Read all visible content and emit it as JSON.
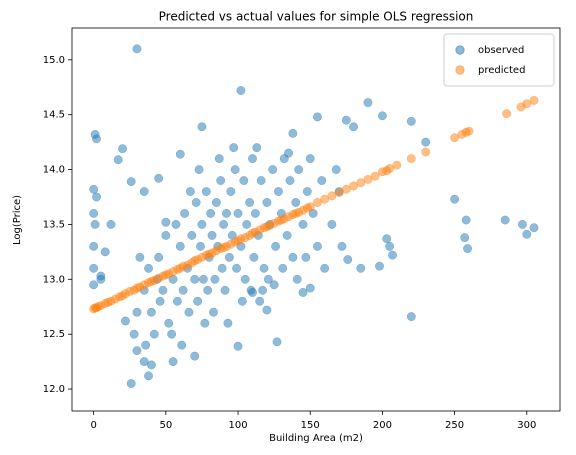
{
  "chart_data": {
    "type": "scatter",
    "title": "Predicted vs actual values for simple OLS regression",
    "xlabel": "Building Area (m2)",
    "ylabel": "Log(Price)",
    "xlim": [
      -15,
      323
    ],
    "ylim": [
      11.8,
      15.29
    ],
    "xticks": [
      0,
      50,
      100,
      150,
      200,
      250,
      300
    ],
    "yticks": [
      {
        "value": 12,
        "label": "12.0"
      },
      12.5,
      {
        "value": 13,
        "label": "13.0"
      },
      13.5,
      {
        "value": 14,
        "label": "14.0"
      },
      14.5,
      {
        "value": 15,
        "label": "15.0"
      }
    ],
    "legend": "upper right",
    "series": [
      {
        "name": "observed",
        "color": "#1f77b4",
        "x": [
          30,
          102,
          0,
          1,
          2,
          20,
          17,
          26,
          35,
          0,
          1,
          0,
          2,
          0,
          5,
          0,
          26,
          38,
          40,
          35,
          100,
          127,
          220,
          285,
          297,
          305,
          300,
          250,
          257,
          259,
          258,
          230,
          220,
          190,
          200,
          180,
          175,
          155,
          138,
          75,
          60,
          45,
          50,
          207,
          205,
          203,
          198,
          176,
          185,
          160,
          150,
          145,
          115,
          110,
          120,
          70,
          55,
          30,
          22,
          12,
          8,
          5,
          40,
          45,
          48,
          50,
          52,
          55,
          57,
          58,
          60,
          62,
          63,
          65,
          66,
          68,
          70,
          71,
          72,
          74,
          75,
          76,
          78,
          79,
          80,
          81,
          82,
          84,
          85,
          86,
          88,
          89,
          90,
          91,
          92,
          94,
          95,
          96,
          98,
          99,
          100,
          102,
          104,
          105,
          106,
          108,
          110,
          111,
          112,
          114,
          116,
          118,
          120,
          122,
          124,
          126,
          128,
          130,
          132,
          134,
          136,
          138,
          140,
          142,
          145,
          148,
          150,
          152,
          155,
          158,
          35,
          38,
          42,
          44,
          46,
          30,
          32,
          28,
          36,
          54,
          61,
          67,
          73,
          77,
          83,
          87,
          93,
          97,
          103,
          109,
          113,
          117,
          121,
          125,
          131,
          135,
          141,
          147,
          165,
          170,
          168,
          172
        ],
        "y": [
          15.1,
          14.72,
          13.82,
          14.32,
          14.28,
          14.19,
          14.09,
          13.89,
          13.8,
          13.6,
          13.5,
          13.3,
          13.75,
          13.1,
          13.0,
          12.95,
          12.05,
          12.12,
          12.22,
          12.25,
          12.39,
          12.43,
          12.66,
          13.54,
          13.5,
          13.47,
          13.41,
          13.73,
          13.38,
          13.28,
          13.54,
          14.25,
          14.44,
          14.61,
          14.49,
          14.39,
          14.45,
          14.48,
          14.33,
          14.39,
          14.14,
          13.92,
          13.52,
          13.22,
          13.3,
          13.37,
          13.12,
          13.18,
          13.1,
          13.1,
          12.92,
          12.88,
          12.8,
          12.88,
          12.72,
          12.3,
          12.25,
          12.35,
          12.62,
          13.5,
          13.25,
          13.03,
          12.7,
          13.2,
          12.9,
          13.4,
          12.6,
          13.0,
          13.5,
          12.8,
          13.3,
          12.9,
          13.6,
          13.1,
          12.7,
          13.4,
          13.0,
          13.7,
          12.8,
          13.3,
          13.5,
          13.0,
          13.8,
          12.9,
          13.2,
          13.6,
          13.4,
          13.0,
          13.7,
          13.3,
          13.9,
          13.1,
          13.5,
          12.9,
          13.6,
          13.2,
          13.8,
          13.4,
          14.0,
          13.1,
          13.6,
          13.3,
          13.9,
          13.0,
          13.5,
          13.7,
          14.1,
          13.2,
          13.6,
          13.4,
          13.9,
          13.1,
          13.7,
          13.5,
          14.0,
          13.3,
          13.8,
          13.6,
          14.1,
          13.4,
          13.9,
          13.2,
          13.7,
          14.0,
          13.5,
          13.8,
          14.1,
          13.6,
          13.3,
          13.9,
          12.9,
          13.1,
          12.5,
          13.0,
          12.8,
          12.7,
          13.2,
          12.5,
          12.4,
          12.5,
          12.4,
          13.8,
          14.0,
          12.6,
          12.7,
          14.1,
          12.6,
          14.2,
          12.8,
          12.9,
          14.2,
          12.9,
          13.0,
          12.95,
          13.1,
          14.15,
          13.0,
          13.2,
          13.5,
          13.8,
          14.0,
          13.3
        ]
      },
      {
        "name": "predicted",
        "color": "#ff7f0e",
        "x": [
          0,
          1,
          2,
          3,
          5,
          8,
          10,
          12,
          15,
          18,
          20,
          22,
          25,
          28,
          30,
          32,
          35,
          38,
          40,
          42,
          45,
          48,
          50,
          52,
          55,
          58,
          60,
          62,
          65,
          68,
          70,
          72,
          75,
          78,
          80,
          82,
          85,
          88,
          90,
          92,
          95,
          98,
          100,
          102,
          105,
          108,
          110,
          112,
          115,
          118,
          120,
          122,
          125,
          128,
          130,
          132,
          135,
          138,
          140,
          142,
          145,
          148,
          150,
          155,
          160,
          165,
          170,
          175,
          180,
          185,
          190,
          195,
          200,
          203,
          205,
          210,
          220,
          230,
          250,
          255,
          258,
          260,
          286,
          296,
          300,
          305
        ],
        "y": [
          12.73,
          12.74,
          12.74,
          12.75,
          12.76,
          12.78,
          12.79,
          12.8,
          12.82,
          12.84,
          12.85,
          12.87,
          12.89,
          12.9,
          12.92,
          12.93,
          12.95,
          12.97,
          12.98,
          12.99,
          13.01,
          13.03,
          13.04,
          13.05,
          13.07,
          13.09,
          13.1,
          13.12,
          13.13,
          13.15,
          13.17,
          13.18,
          13.2,
          13.22,
          13.23,
          13.24,
          13.26,
          13.28,
          13.29,
          13.3,
          13.32,
          13.34,
          13.35,
          13.37,
          13.38,
          13.4,
          13.42,
          13.43,
          13.45,
          13.47,
          13.48,
          13.49,
          13.51,
          13.53,
          13.54,
          13.55,
          13.57,
          13.59,
          13.6,
          13.61,
          13.63,
          13.65,
          13.66,
          13.7,
          13.73,
          13.76,
          13.79,
          13.82,
          13.85,
          13.88,
          13.91,
          13.94,
          13.98,
          13.99,
          14.01,
          14.04,
          14.1,
          14.16,
          14.29,
          14.32,
          14.34,
          14.35,
          14.51,
          14.57,
          14.6,
          14.63
        ]
      }
    ]
  }
}
